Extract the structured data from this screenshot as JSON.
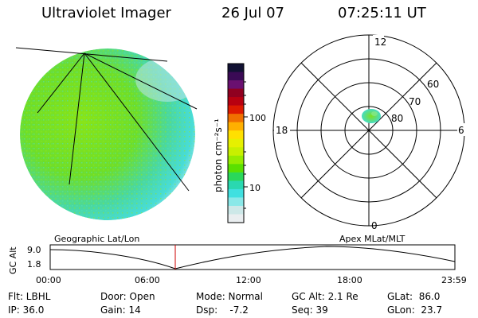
{
  "header": {
    "title": "Ultraviolet Imager",
    "date": "26 Jul 07",
    "time": "07:25:11 UT"
  },
  "colorbar": {
    "unit_label": "photon cm⁻²s⁻¹",
    "ticks": [
      "100",
      "10"
    ],
    "colors": [
      "#111133",
      "#3a0a55",
      "#6a1070",
      "#900020",
      "#b80010",
      "#dd1a00",
      "#f07000",
      "#ffb000",
      "#ffe000",
      "#e6f000",
      "#c8f000",
      "#96ec00",
      "#5ae000",
      "#2ad85a",
      "#2ad8b0",
      "#40e0e0",
      "#8ae8e8",
      "#cde8e8",
      "#eaeef0"
    ]
  },
  "polar_plot": {
    "mlt_labels": {
      "top": "12",
      "left": "18",
      "right": "6",
      "bottom": "0"
    },
    "lat_labels": [
      "60",
      "70",
      "80"
    ]
  },
  "timeline": {
    "ylabel": "GC Alt",
    "ymax": "9.0",
    "ymin": "1.8",
    "left_label": "Geographic Lat/Lon",
    "right_label": "Apex MLat/MLT",
    "time_ticks": [
      "00:00",
      "06:00",
      "12:00",
      "18:00",
      "23:59"
    ],
    "current_time_fraction": 0.309,
    "marker_color": "#cc0000"
  },
  "info": {
    "col1": [
      "Flt: LBHL",
      "IP: 36.0"
    ],
    "col2": [
      "Door: Open",
      "Gain: 14"
    ],
    "col3": [
      "Mode: Normal",
      "Dsp:    -7.2"
    ],
    "col4": [
      "GC Alt: 2.1 Re",
      "Seq: 39"
    ],
    "col5": [
      "GLat:  86.0",
      "GLon:  23.7"
    ]
  },
  "colors": {
    "aurora_green": "#7ee020",
    "aurora_cyan": "#3fe0d8",
    "aurora_light": "#cde8e8"
  }
}
